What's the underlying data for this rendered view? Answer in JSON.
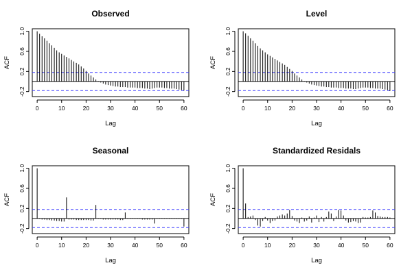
{
  "chart_data": [
    {
      "type": "bar",
      "title": "Observed",
      "xlabel": "Lag",
      "ylabel": "ACF",
      "xlim": [
        -2,
        62
      ],
      "ylim": [
        -0.3,
        1.05
      ],
      "x_ticks": [
        0,
        10,
        20,
        30,
        40,
        50,
        60
      ],
      "y_ticks": [
        -0.2,
        0.2,
        0.6,
        1.0
      ],
      "y_tick_labels": [
        "-0.2",
        "0.2",
        "0.6",
        "1.0"
      ],
      "ci": 0.18,
      "grid": false,
      "lags": [
        0,
        1,
        2,
        3,
        4,
        5,
        6,
        7,
        8,
        9,
        10,
        11,
        12,
        13,
        14,
        15,
        16,
        17,
        18,
        19,
        20,
        21,
        22,
        23,
        24,
        25,
        26,
        27,
        28,
        29,
        30,
        31,
        32,
        33,
        34,
        35,
        36,
        37,
        38,
        39,
        40,
        41,
        42,
        43,
        44,
        45,
        46,
        47,
        48,
        49,
        50,
        51,
        52,
        53,
        54,
        55,
        56,
        57,
        58,
        59,
        60
      ],
      "values": [
        1.0,
        0.95,
        0.9,
        0.86,
        0.81,
        0.76,
        0.72,
        0.67,
        0.62,
        0.58,
        0.55,
        0.52,
        0.49,
        0.46,
        0.43,
        0.4,
        0.37,
        0.34,
        0.3,
        0.26,
        0.21,
        0.16,
        0.12,
        0.08,
        0.04,
        0.01,
        -0.02,
        -0.04,
        -0.06,
        -0.07,
        -0.08,
        -0.09,
        -0.1,
        -0.1,
        -0.11,
        -0.11,
        -0.11,
        -0.12,
        -0.12,
        -0.12,
        -0.12,
        -0.13,
        -0.13,
        -0.13,
        -0.14,
        -0.14,
        -0.15,
        -0.14,
        -0.13,
        -0.12,
        -0.12,
        -0.12,
        -0.13,
        -0.13,
        -0.14,
        -0.14,
        -0.14,
        -0.15,
        -0.16,
        -0.17,
        -0.18
      ]
    },
    {
      "type": "bar",
      "title": "Level",
      "xlabel": "Lag",
      "ylabel": "ACF",
      "xlim": [
        -2,
        62
      ],
      "ylim": [
        -0.3,
        1.05
      ],
      "x_ticks": [
        0,
        10,
        20,
        30,
        40,
        50,
        60
      ],
      "y_ticks": [
        -0.2,
        0.2,
        0.6,
        1.0
      ],
      "y_tick_labels": [
        "-0.2",
        "0.2",
        "0.6",
        "1.0"
      ],
      "ci": 0.18,
      "grid": false,
      "lags": [
        0,
        1,
        2,
        3,
        4,
        5,
        6,
        7,
        8,
        9,
        10,
        11,
        12,
        13,
        14,
        15,
        16,
        17,
        18,
        19,
        20,
        21,
        22,
        23,
        24,
        25,
        26,
        27,
        28,
        29,
        30,
        31,
        32,
        33,
        34,
        35,
        36,
        37,
        38,
        39,
        40,
        41,
        42,
        43,
        44,
        45,
        46,
        47,
        48,
        49,
        50,
        51,
        52,
        53,
        54,
        55,
        56,
        57,
        58,
        59,
        60
      ],
      "values": [
        1.0,
        0.96,
        0.91,
        0.86,
        0.81,
        0.76,
        0.71,
        0.66,
        0.62,
        0.58,
        0.54,
        0.51,
        0.48,
        0.45,
        0.42,
        0.39,
        0.36,
        0.33,
        0.29,
        0.25,
        0.21,
        0.16,
        0.12,
        0.08,
        0.04,
        0.01,
        -0.02,
        -0.04,
        -0.06,
        -0.07,
        -0.08,
        -0.09,
        -0.1,
        -0.1,
        -0.11,
        -0.11,
        -0.12,
        -0.12,
        -0.12,
        -0.13,
        -0.13,
        -0.13,
        -0.14,
        -0.14,
        -0.14,
        -0.15,
        -0.15,
        -0.14,
        -0.13,
        -0.12,
        -0.12,
        -0.12,
        -0.13,
        -0.13,
        -0.14,
        -0.14,
        -0.14,
        -0.15,
        -0.16,
        -0.17,
        -0.19
      ]
    },
    {
      "type": "bar",
      "title": "Seasonal",
      "xlabel": "Lag",
      "ylabel": "ACF",
      "xlim": [
        -2,
        62
      ],
      "ylim": [
        -0.3,
        1.05
      ],
      "x_ticks": [
        0,
        10,
        20,
        30,
        40,
        50,
        60
      ],
      "y_ticks": [
        -0.2,
        0.2,
        0.6,
        1.0
      ],
      "y_tick_labels": [
        "-0.2",
        "0.2",
        "0.6",
        "1.0"
      ],
      "ci": 0.18,
      "grid": false,
      "lags": [
        0,
        1,
        2,
        3,
        4,
        5,
        6,
        7,
        8,
        9,
        10,
        11,
        12,
        13,
        14,
        15,
        16,
        17,
        18,
        19,
        20,
        21,
        22,
        23,
        24,
        25,
        26,
        27,
        28,
        29,
        30,
        31,
        32,
        33,
        34,
        35,
        36,
        37,
        38,
        39,
        40,
        41,
        42,
        43,
        44,
        45,
        46,
        47,
        48,
        49,
        50,
        51,
        52,
        53,
        54,
        55,
        56,
        57,
        58,
        59,
        60
      ],
      "values": [
        1.0,
        -0.01,
        -0.02,
        -0.02,
        -0.03,
        -0.03,
        -0.04,
        -0.04,
        -0.05,
        -0.05,
        -0.06,
        -0.06,
        0.42,
        -0.02,
        -0.02,
        -0.02,
        -0.03,
        -0.03,
        -0.03,
        -0.03,
        -0.03,
        -0.03,
        -0.04,
        -0.04,
        0.27,
        -0.01,
        -0.01,
        -0.02,
        -0.02,
        -0.02,
        -0.02,
        -0.02,
        -0.02,
        -0.02,
        -0.03,
        -0.03,
        0.12,
        -0.01,
        -0.01,
        -0.01,
        -0.01,
        -0.01,
        -0.01,
        -0.02,
        -0.02,
        -0.02,
        -0.02,
        -0.02,
        -0.1,
        -0.01,
        -0.01,
        -0.01,
        -0.01,
        -0.01,
        -0.01,
        -0.01,
        -0.01,
        -0.01,
        -0.01,
        -0.01,
        -0.16
      ]
    },
    {
      "type": "bar",
      "title": "Standardized Residals",
      "xlabel": "Lag",
      "ylabel": "ACF",
      "xlim": [
        -2,
        62
      ],
      "ylim": [
        -0.3,
        1.05
      ],
      "x_ticks": [
        0,
        10,
        20,
        30,
        40,
        50,
        60
      ],
      "y_ticks": [
        -0.2,
        0.2,
        0.6,
        1.0
      ],
      "y_tick_labels": [
        "-0.2",
        "0.2",
        "0.6",
        "1.0"
      ],
      "ci": 0.18,
      "grid": false,
      "lags": [
        0,
        1,
        2,
        3,
        4,
        5,
        6,
        7,
        8,
        9,
        10,
        11,
        12,
        13,
        14,
        15,
        16,
        17,
        18,
        19,
        20,
        21,
        22,
        23,
        24,
        25,
        26,
        27,
        28,
        29,
        30,
        31,
        32,
        33,
        34,
        35,
        36,
        37,
        38,
        39,
        40,
        41,
        42,
        43,
        44,
        45,
        46,
        47,
        48,
        49,
        50,
        51,
        52,
        53,
        54,
        55,
        56,
        57,
        58,
        59,
        60
      ],
      "values": [
        1.0,
        0.3,
        0.03,
        0.04,
        0.06,
        -0.03,
        -0.14,
        -0.16,
        -0.05,
        0.03,
        -0.04,
        -0.09,
        -0.05,
        -0.04,
        0.04,
        0.06,
        0.08,
        0.06,
        0.1,
        0.17,
        0.05,
        -0.04,
        -0.06,
        -0.09,
        0.02,
        -0.06,
        -0.04,
        0.04,
        -0.08,
        0.02,
        0.06,
        -0.07,
        0.03,
        -0.06,
        0.03,
        0.14,
        0.1,
        -0.05,
        0.04,
        0.17,
        0.16,
        0.06,
        -0.04,
        -0.08,
        -0.07,
        -0.05,
        -0.06,
        -0.09,
        -0.08,
        0.03,
        0.02,
        0.02,
        0.03,
        0.16,
        0.12,
        0.05,
        0.04,
        0.03,
        0.03,
        0.03,
        0.02
      ]
    }
  ]
}
